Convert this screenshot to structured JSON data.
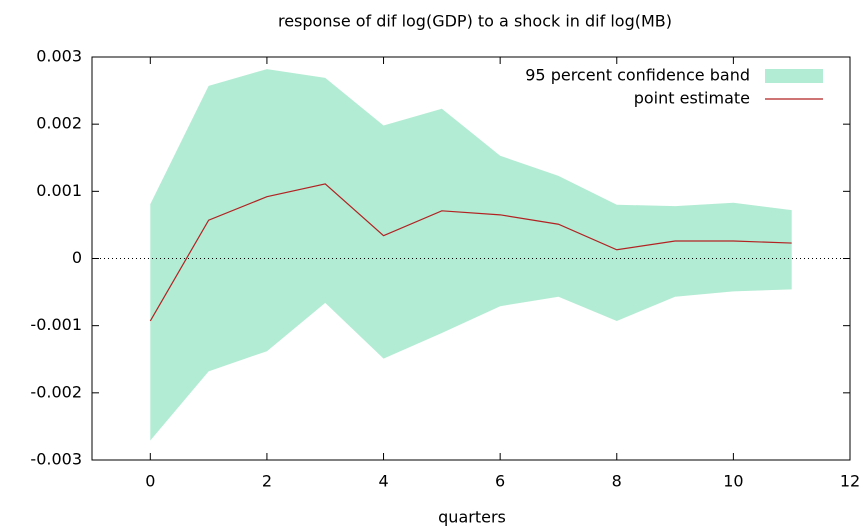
{
  "chart_data": {
    "type": "band-line",
    "title": "response of dif log(GDP) to a shock in dif log(MB)",
    "x_label": "quarters",
    "x": [
      0,
      1,
      2,
      3,
      4,
      5,
      6,
      7,
      8,
      9,
      10,
      11
    ],
    "band": {
      "name": "95 percent confidence band",
      "color": "#b3ecd4",
      "upper": [
        0.00081,
        0.00257,
        0.00282,
        0.00269,
        0.00198,
        0.00223,
        0.00153,
        0.00123,
        0.0008,
        0.00078,
        0.00083,
        0.00072
      ],
      "lower": [
        -0.00271,
        -0.00168,
        -0.00138,
        -0.00066,
        -0.00149,
        -0.00111,
        -0.00071,
        -0.00057,
        -0.00093,
        -0.00057,
        -0.00049,
        -0.00046
      ]
    },
    "series": [
      {
        "name": "point estimate",
        "color": "#b22222",
        "values": [
          -0.00093,
          0.00057,
          0.00092,
          0.00111,
          0.00034,
          0.00071,
          0.00065,
          0.00051,
          0.00013,
          0.00026,
          0.00026,
          0.00023
        ]
      }
    ],
    "xlim": [
      -1,
      12
    ],
    "xticks": [
      0,
      2,
      4,
      6,
      8,
      10,
      12
    ],
    "ylim": [
      -0.003,
      0.003
    ],
    "yticks": [
      -0.003,
      -0.002,
      -0.001,
      0,
      0.001,
      0.002,
      0.003
    ],
    "zero_line": true,
    "legend": "top-right"
  }
}
